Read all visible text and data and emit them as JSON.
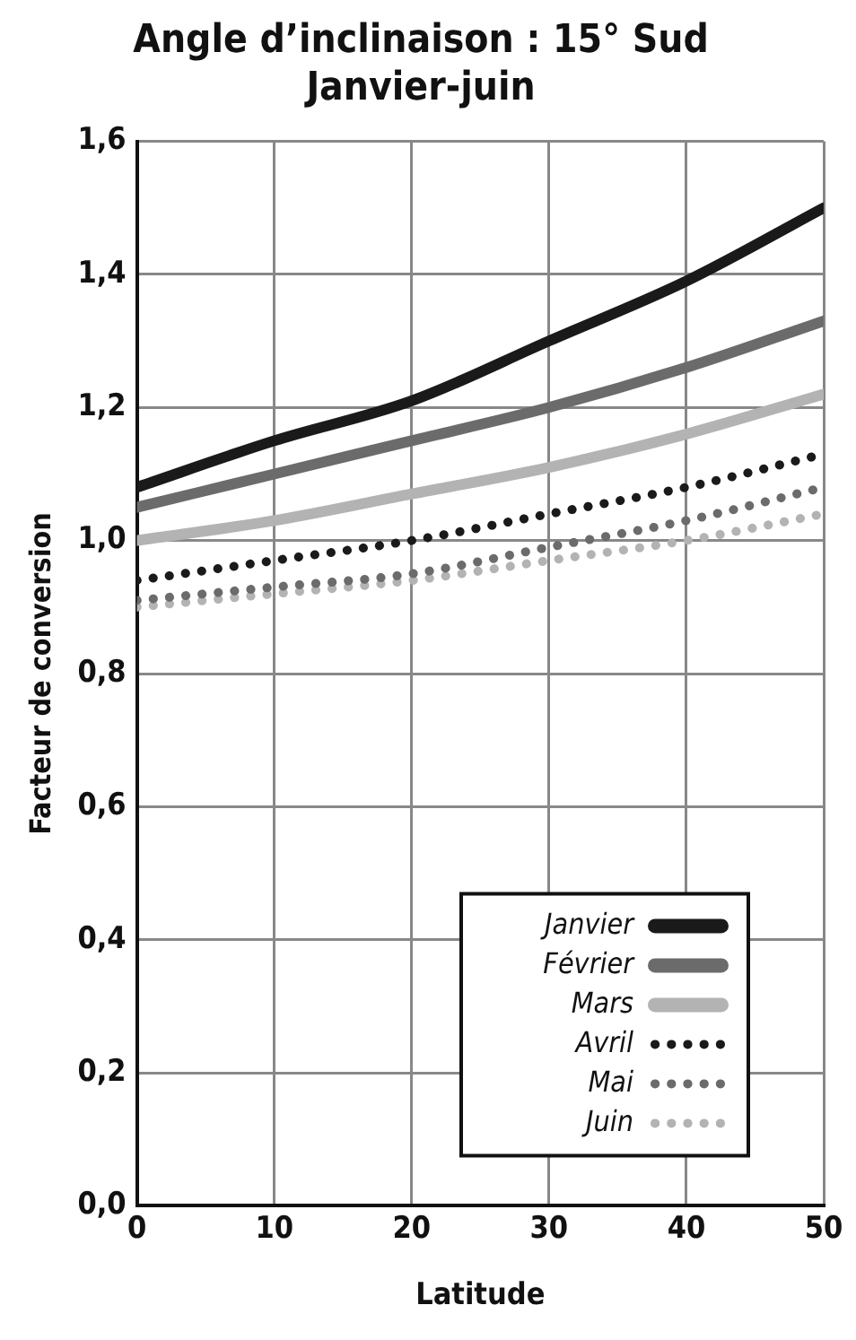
{
  "chart_data": {
    "type": "line",
    "title": [
      "Angle d’inclinaison : 15° Sud",
      "Janvier-juin"
    ],
    "xlabel": "Latitude",
    "ylabel": "Facteur de conversion",
    "x": [
      0,
      10,
      20,
      30,
      40,
      50
    ],
    "series": [
      {
        "name": "Janvier",
        "color": "#1a1a1a",
        "values": [
          1.08,
          1.15,
          1.21,
          1.3,
          1.39,
          1.5
        ],
        "line_style": "solid"
      },
      {
        "name": "Février",
        "color": "#6b6b6b",
        "values": [
          1.05,
          1.1,
          1.15,
          1.2,
          1.26,
          1.33
        ],
        "line_style": "solid"
      },
      {
        "name": "Mars",
        "color": "#b3b3b3",
        "values": [
          1.0,
          1.03,
          1.07,
          1.11,
          1.16,
          1.22
        ],
        "line_style": "solid"
      },
      {
        "name": "Avril",
        "color": "#1a1a1a",
        "values": [
          0.94,
          0.97,
          1.0,
          1.04,
          1.08,
          1.13
        ],
        "line_style": "dotted"
      },
      {
        "name": "Mai",
        "color": "#6b6b6b",
        "values": [
          0.91,
          0.93,
          0.95,
          0.99,
          1.03,
          1.08
        ],
        "line_style": "dotted"
      },
      {
        "name": "Juin",
        "color": "#b3b3b3",
        "values": [
          0.9,
          0.92,
          0.94,
          0.97,
          1.0,
          1.04
        ],
        "line_style": "dotted"
      }
    ],
    "xlim": [
      0,
      50
    ],
    "xticks": [
      0,
      10,
      20,
      30,
      40,
      50
    ],
    "ylim": [
      0,
      1.6
    ],
    "yticks": [
      {
        "value": 0,
        "label": "0,0"
      },
      {
        "value": 0.2,
        "label": "0,2"
      },
      {
        "value": 0.4,
        "label": "0,4"
      },
      {
        "value": 0.6,
        "label": "0,6"
      },
      {
        "value": 0.8,
        "label": "0,8"
      },
      {
        "value": 1,
        "label": "1,0"
      },
      {
        "value": 1.2,
        "label": "1,2"
      },
      {
        "value": 1.4,
        "label": "1,4"
      },
      {
        "value": 1.6,
        "label": "1,6"
      }
    ],
    "grid": true,
    "legend": "bottom right",
    "marker": "none"
  }
}
